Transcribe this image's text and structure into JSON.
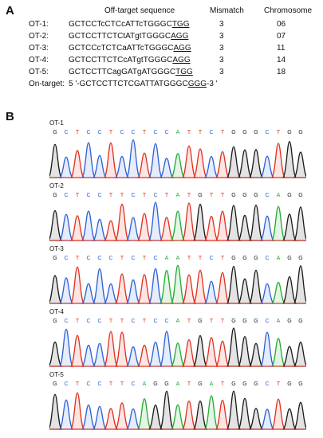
{
  "panel_a": {
    "letter": "A",
    "headers": {
      "sequence": "Off-target sequence",
      "mismatch": "Mismatch",
      "chromosome": "Chromosome"
    },
    "rows": [
      {
        "label": "OT-1:",
        "seq": "GCTCCTcCTCcATTcTGGGC",
        "pam": "TGG",
        "mismatch": "3",
        "chromosome": "06"
      },
      {
        "label": "OT-2:",
        "seq": "GCTCCTTCTCtATgtTGGGC",
        "pam": "AGG",
        "mismatch": "3",
        "chromosome": "07"
      },
      {
        "label": "OT-3:",
        "seq": "GCTCCcTCTCaATTcTGGGC",
        "pam": "AGG",
        "mismatch": "3",
        "chromosome": "11"
      },
      {
        "label": "OT-4:",
        "seq": "GCTCCTTCTCcATgtTGGGC",
        "pam": "AGG",
        "mismatch": "3",
        "chromosome": "14"
      },
      {
        "label": "OT-5:",
        "seq": "GCTCCTTCagGATgATGGGC",
        "pam": "TGG",
        "mismatch": "3",
        "chromosome": "18"
      }
    ],
    "ontarget": {
      "label": "On-target:",
      "prefix": "5 '-GCTCCTTCTCGATTATGGGC",
      "pam": "GGG",
      "suffix": "-3 '"
    }
  },
  "panel_b": {
    "letter": "B",
    "traces": [
      {
        "label": "OT-1",
        "bases": "GCTCCTCCTCCATTCTGGGCTGG"
      },
      {
        "label": "OT-2",
        "bases": "GCTCCTTCTCTATGTTGGGCAGG"
      },
      {
        "label": "OT-3",
        "bases": "GCTCCCTCTCAATTCTGGGCAGG"
      },
      {
        "label": "OT-4",
        "bases": "GCTCCTTCTCCATGTTGGGCAGG"
      },
      {
        "label": "OT-5",
        "bases": "GCTCCTTCAGGATGATGGGCTGG"
      }
    ]
  },
  "colors": {
    "A": "#22aa33",
    "C": "#2d5fd6",
    "G": "#1a1a1a",
    "T": "#e0301e"
  }
}
